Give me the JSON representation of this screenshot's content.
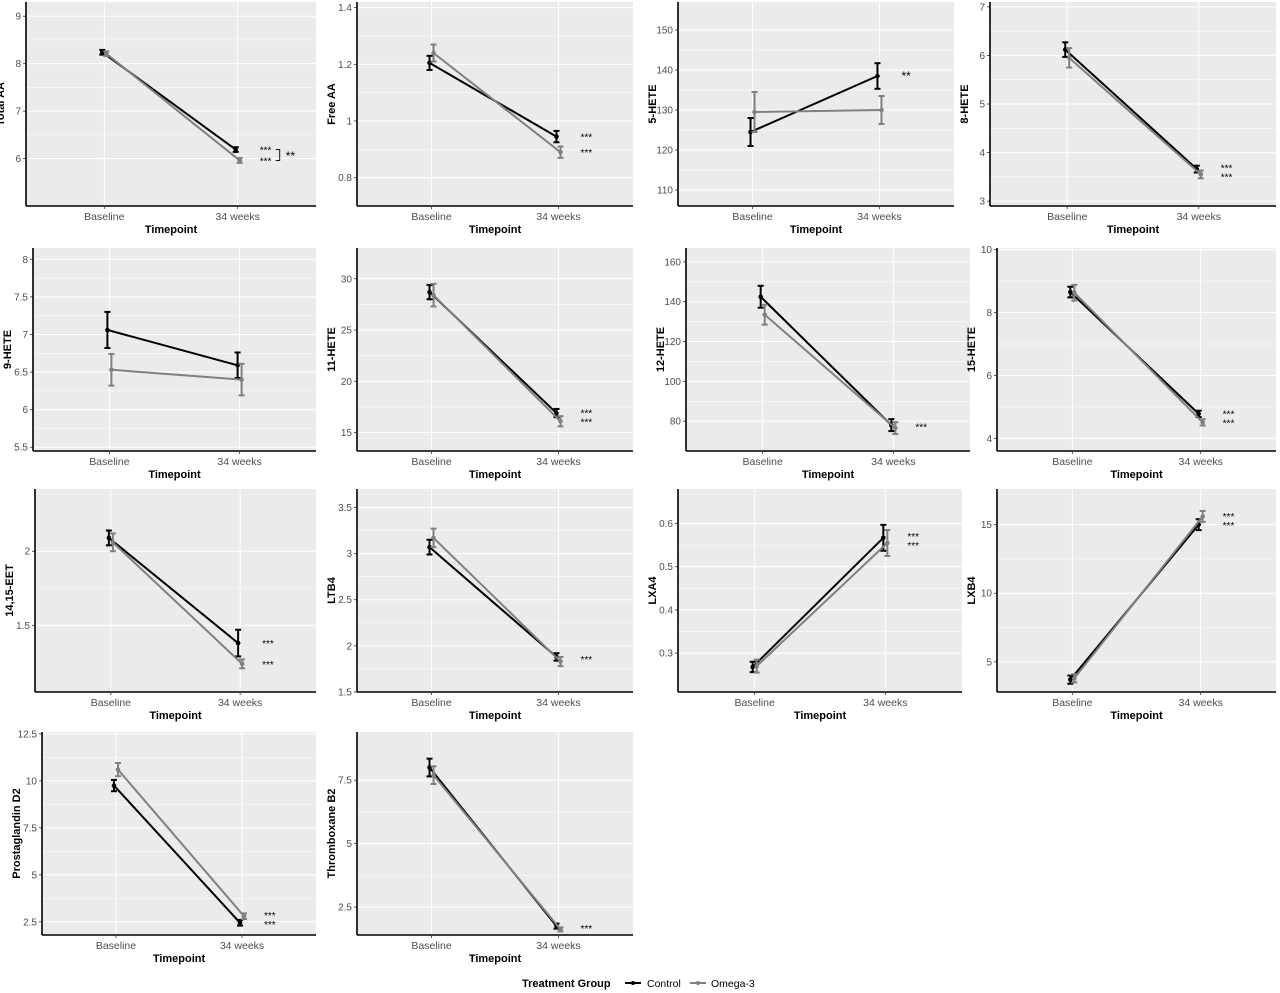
{
  "legend": {
    "title": "Treatment Group",
    "items": [
      {
        "name": "Control",
        "color": "#000000"
      },
      {
        "name": "Omega-3",
        "color": "#808080"
      }
    ]
  },
  "colors": {
    "panel_bg": "#ebebeb",
    "grid": "#ffffff",
    "control": "#000000",
    "omega3": "#808080"
  },
  "chart_data": [
    {
      "type": "line",
      "ylabel": "Total AA",
      "xlabel": "Timepoint",
      "categories": [
        "Baseline",
        "34 weeks"
      ],
      "ylim": [
        5,
        9.3
      ],
      "yticks": [
        6,
        7,
        8,
        9
      ],
      "series": [
        {
          "name": "Control",
          "values": [
            8.24,
            6.19
          ],
          "error": [
            0.05,
            0.05
          ]
        },
        {
          "name": "Omega-3",
          "values": [
            8.21,
            5.96
          ],
          "error": [
            0.05,
            0.05
          ]
        }
      ],
      "annotations": [
        "***",
        "***"
      ],
      "bracket": "**"
    },
    {
      "type": "line",
      "ylabel": "Free AA",
      "xlabel": "Timepoint",
      "categories": [
        "Baseline",
        "34 weeks"
      ],
      "ylim": [
        0.7,
        1.42
      ],
      "yticks": [
        0.8,
        1.0,
        1.2,
        1.4
      ],
      "series": [
        {
          "name": "Control",
          "values": [
            1.205,
            0.945
          ],
          "error": [
            0.025,
            0.02
          ]
        },
        {
          "name": "Omega-3",
          "values": [
            1.24,
            0.89
          ],
          "error": [
            0.03,
            0.02
          ]
        }
      ],
      "annotations": [
        "***",
        "***"
      ]
    },
    {
      "type": "line",
      "ylabel": "5-HETE",
      "xlabel": "Timepoint",
      "categories": [
        "Baseline",
        "34 weeks"
      ],
      "ylim": [
        106,
        157
      ],
      "yticks": [
        110,
        120,
        130,
        140,
        150
      ],
      "series": [
        {
          "name": "Control",
          "values": [
            124.5,
            138.5
          ],
          "error": [
            3.5,
            3.2
          ]
        },
        {
          "name": "Omega-3",
          "values": [
            129.5,
            130
          ],
          "error": [
            5,
            3.5
          ]
        }
      ],
      "annotations": [
        "**"
      ]
    },
    {
      "type": "line",
      "ylabel": "8-HETE",
      "xlabel": "Timepoint",
      "categories": [
        "Baseline",
        "34 weeks"
      ],
      "ylim": [
        2.9,
        7.1
      ],
      "yticks": [
        3,
        4,
        5,
        6,
        7
      ],
      "series": [
        {
          "name": "Control",
          "values": [
            6.12,
            3.66
          ],
          "error": [
            0.15,
            0.07
          ]
        },
        {
          "name": "Omega-3",
          "values": [
            5.95,
            3.55
          ],
          "error": [
            0.2,
            0.08
          ]
        }
      ],
      "annotations": [
        "***",
        "***"
      ]
    },
    {
      "type": "line",
      "ylabel": "9-HETE",
      "xlabel": "Timepoint",
      "categories": [
        "Baseline",
        "34 weeks"
      ],
      "ylim": [
        5.45,
        8.15
      ],
      "yticks": [
        5.5,
        6.0,
        6.5,
        7.0,
        7.5,
        8.0
      ],
      "series": [
        {
          "name": "Control",
          "values": [
            7.06,
            6.59
          ],
          "error": [
            0.24,
            0.17
          ]
        },
        {
          "name": "Omega-3",
          "values": [
            6.53,
            6.4
          ],
          "error": [
            0.21,
            0.21
          ]
        }
      ],
      "annotations": []
    },
    {
      "type": "line",
      "ylabel": "11-HETE",
      "xlabel": "Timepoint",
      "categories": [
        "Baseline",
        "34 weeks"
      ],
      "ylim": [
        13.2,
        33
      ],
      "yticks": [
        15,
        20,
        25,
        30
      ],
      "series": [
        {
          "name": "Control",
          "values": [
            28.7,
            16.9
          ],
          "error": [
            0.7,
            0.4
          ]
        },
        {
          "name": "Omega-3",
          "values": [
            28.4,
            16.1
          ],
          "error": [
            1.1,
            0.5
          ]
        }
      ],
      "annotations": [
        "***",
        "***"
      ]
    },
    {
      "type": "line",
      "ylabel": "12-HETE",
      "xlabel": "Timepoint",
      "categories": [
        "Baseline",
        "34 weeks"
      ],
      "ylim": [
        65,
        167
      ],
      "yticks": [
        80,
        100,
        120,
        140,
        160
      ],
      "series": [
        {
          "name": "Control",
          "values": [
            142.5,
            78
          ],
          "error": [
            5.5,
            3
          ]
        },
        {
          "name": "Omega-3",
          "values": [
            133.5,
            76.5
          ],
          "error": [
            5,
            3
          ]
        }
      ],
      "annotations": [
        "***"
      ]
    },
    {
      "type": "line",
      "ylabel": "15-HETE",
      "xlabel": "Timepoint",
      "categories": [
        "Baseline",
        "34 weeks"
      ],
      "ylim": [
        3.6,
        10.05
      ],
      "yticks": [
        4,
        6,
        8,
        10
      ],
      "series": [
        {
          "name": "Control",
          "values": [
            8.65,
            4.78
          ],
          "error": [
            0.17,
            0.1
          ]
        },
        {
          "name": "Omega-3",
          "values": [
            8.63,
            4.51
          ],
          "error": [
            0.25,
            0.1
          ]
        }
      ],
      "annotations": [
        "***",
        "***"
      ]
    },
    {
      "type": "line",
      "ylabel": "14,15-EET",
      "xlabel": "Timepoint",
      "categories": [
        "Baseline",
        "34 weeks"
      ],
      "ylim": [
        1.05,
        2.42
      ],
      "yticks": [
        1.5,
        2.0
      ],
      "series": [
        {
          "name": "Control",
          "values": [
            2.09,
            1.38
          ],
          "error": [
            0.05,
            0.09
          ]
        },
        {
          "name": "Omega-3",
          "values": [
            2.06,
            1.24
          ],
          "error": [
            0.06,
            0.03
          ]
        }
      ],
      "annotations": [
        "***",
        "***"
      ]
    },
    {
      "type": "line",
      "ylabel": "LTB4",
      "xlabel": "Timepoint",
      "categories": [
        "Baseline",
        "34 weeks"
      ],
      "ylim": [
        1.5,
        3.7
      ],
      "yticks": [
        1.5,
        2.0,
        2.5,
        3.0,
        3.5
      ],
      "series": [
        {
          "name": "Control",
          "values": [
            3.07,
            1.88
          ],
          "error": [
            0.08,
            0.04
          ]
        },
        {
          "name": "Omega-3",
          "values": [
            3.17,
            1.83
          ],
          "error": [
            0.1,
            0.05
          ]
        }
      ],
      "annotations": [
        "***"
      ]
    },
    {
      "type": "line",
      "ylabel": "LXA4",
      "xlabel": "Timepoint",
      "categories": [
        "Baseline",
        "34 weeks"
      ],
      "ylim": [
        0.21,
        0.68
      ],
      "yticks": [
        0.3,
        0.4,
        0.5,
        0.6
      ],
      "series": [
        {
          "name": "Control",
          "values": [
            0.268,
            0.567
          ],
          "error": [
            0.012,
            0.03
          ]
        },
        {
          "name": "Omega-3",
          "values": [
            0.27,
            0.555
          ],
          "error": [
            0.015,
            0.03
          ]
        }
      ],
      "annotations": [
        "***",
        "***"
      ]
    },
    {
      "type": "line",
      "ylabel": "LXB4",
      "xlabel": "Timepoint",
      "categories": [
        "Baseline",
        "34 weeks"
      ],
      "ylim": [
        2.8,
        17.6
      ],
      "yticks": [
        5,
        10,
        15
      ],
      "series": [
        {
          "name": "Control",
          "values": [
            3.7,
            15.0
          ],
          "error": [
            0.3,
            0.4
          ]
        },
        {
          "name": "Omega-3",
          "values": [
            3.8,
            15.6
          ],
          "error": [
            0.3,
            0.4
          ]
        }
      ],
      "annotations": [
        "***",
        "***"
      ]
    },
    {
      "type": "line",
      "ylabel": "Prostaglandin D2",
      "xlabel": "Timepoint",
      "categories": [
        "Baseline",
        "34 weeks"
      ],
      "ylim": [
        1.8,
        12.6
      ],
      "yticks": [
        2.5,
        5.0,
        7.5,
        10.0,
        12.5
      ],
      "series": [
        {
          "name": "Control",
          "values": [
            9.75,
            2.45
          ],
          "error": [
            0.3,
            0.15
          ]
        },
        {
          "name": "Omega-3",
          "values": [
            10.6,
            2.8
          ],
          "error": [
            0.35,
            0.15
          ]
        }
      ],
      "annotations": [
        "***",
        "***"
      ]
    },
    {
      "type": "line",
      "ylabel": "Thromboxane B2",
      "xlabel": "Timepoint",
      "categories": [
        "Baseline",
        "34 weeks"
      ],
      "ylim": [
        1.4,
        9.4
      ],
      "yticks": [
        2.5,
        5.0,
        7.5
      ],
      "series": [
        {
          "name": "Control",
          "values": [
            8.0,
            1.75
          ],
          "error": [
            0.35,
            0.1
          ]
        },
        {
          "name": "Omega-3",
          "values": [
            7.7,
            1.62
          ],
          "error": [
            0.35,
            0.08
          ]
        }
      ],
      "annotations": [
        "***"
      ]
    }
  ]
}
